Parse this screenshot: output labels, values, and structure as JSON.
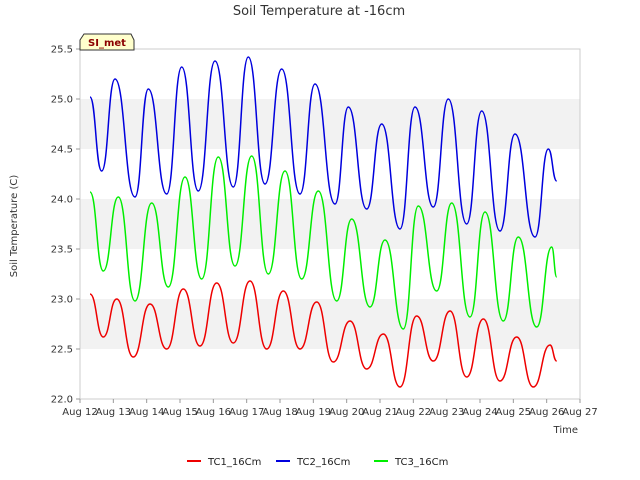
{
  "chart_data": {
    "type": "line",
    "title": "Soil Temperature at -16cm",
    "xlabel": "Time",
    "ylabel": "Soil Temperature (C)",
    "xlim": [
      12,
      27
    ],
    "ylim": [
      22.0,
      25.5
    ],
    "x_ticks": [
      12,
      13,
      14,
      15,
      16,
      17,
      18,
      19,
      20,
      21,
      22,
      23,
      24,
      25,
      26,
      27
    ],
    "x_tick_labels": [
      "Aug 12",
      "Aug 13",
      "Aug 14",
      "Aug 15",
      "Aug 16",
      "Aug 17",
      "Aug 18",
      "Aug 19",
      "Aug 20",
      "Aug 21",
      "Aug 22",
      "Aug 23",
      "Aug 24",
      "Aug 25",
      "Aug 26",
      "Aug 27"
    ],
    "y_ticks": [
      22.0,
      22.5,
      23.0,
      23.5,
      24.0,
      24.5,
      25.0,
      25.5
    ],
    "y_tick_labels": [
      "22.0",
      "22.5",
      "23.0",
      "23.5",
      "24.0",
      "24.5",
      "25.0",
      "25.5"
    ],
    "grid": "horizontal-bands",
    "legend_position": "bottom-center",
    "station_label": "SI_met",
    "series": [
      {
        "name": "TC1_16Cm",
        "color": "#ee0000",
        "x": [
          12.3,
          12.7,
          13.1,
          13.6,
          14.1,
          14.6,
          15.1,
          15.6,
          16.1,
          16.6,
          17.1,
          17.6,
          18.1,
          18.6,
          19.1,
          19.6,
          20.1,
          20.6,
          21.1,
          21.6,
          22.1,
          22.6,
          23.1,
          23.6,
          24.1,
          24.6,
          25.1,
          25.6,
          26.1,
          26.3
        ],
        "y": [
          23.05,
          22.62,
          23.0,
          22.42,
          22.95,
          22.5,
          23.1,
          22.53,
          23.16,
          22.56,
          23.18,
          22.5,
          23.08,
          22.5,
          22.97,
          22.37,
          22.78,
          22.3,
          22.65,
          22.12,
          22.83,
          22.38,
          22.88,
          22.22,
          22.8,
          22.18,
          22.62,
          22.12,
          22.54,
          22.38
        ]
      },
      {
        "name": "TC2_16Cm",
        "color": "#0000dd",
        "x": [
          12.3,
          12.65,
          13.05,
          13.65,
          14.05,
          14.6,
          15.05,
          15.55,
          16.05,
          16.6,
          17.05,
          17.55,
          18.05,
          18.6,
          19.05,
          19.65,
          20.05,
          20.6,
          21.05,
          21.6,
          22.05,
          22.6,
          23.05,
          23.6,
          24.05,
          24.6,
          25.05,
          25.65,
          26.05,
          26.3
        ],
        "y": [
          25.02,
          24.28,
          25.2,
          24.02,
          25.1,
          24.05,
          25.32,
          24.08,
          25.38,
          24.12,
          25.42,
          24.15,
          25.3,
          24.05,
          25.15,
          23.95,
          24.92,
          23.9,
          24.75,
          23.7,
          24.92,
          23.92,
          25.0,
          23.75,
          24.88,
          23.68,
          24.65,
          23.62,
          24.5,
          24.18
        ]
      },
      {
        "name": "TC3_16Cm",
        "color": "#00ee00",
        "x": [
          12.3,
          12.7,
          13.15,
          13.65,
          14.15,
          14.65,
          15.15,
          15.65,
          16.15,
          16.65,
          17.15,
          17.65,
          18.15,
          18.65,
          19.15,
          19.7,
          20.15,
          20.7,
          21.15,
          21.7,
          22.15,
          22.7,
          23.15,
          23.7,
          24.15,
          24.7,
          25.15,
          25.7,
          26.15,
          26.3
        ],
        "y": [
          24.07,
          23.28,
          24.02,
          22.98,
          23.96,
          23.12,
          24.22,
          23.2,
          24.42,
          23.33,
          24.43,
          23.25,
          24.28,
          23.2,
          24.08,
          22.98,
          23.8,
          22.92,
          23.59,
          22.7,
          23.93,
          23.08,
          23.96,
          22.82,
          23.87,
          22.78,
          23.62,
          22.72,
          23.52,
          23.22
        ]
      }
    ]
  }
}
